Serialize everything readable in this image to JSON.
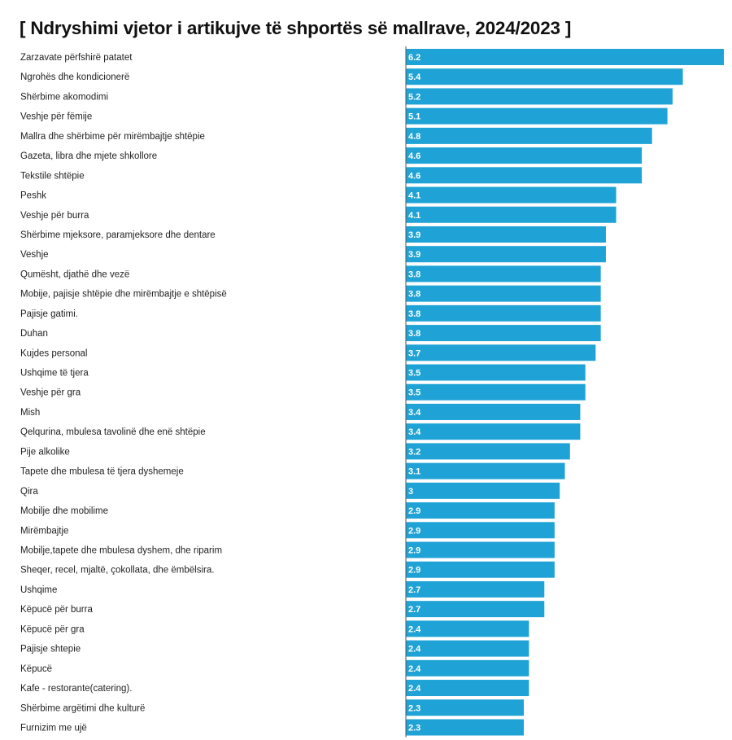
{
  "chart_data": {
    "type": "bar",
    "orientation": "horizontal",
    "title": "[ Ndryshimi vjetor i artikujve të shportës së mallrave, 2024/2023 ]",
    "bar_color": "#1fa3d6",
    "categories": [
      "Zarzavate përfshirë patatet",
      "Ngrohës dhe kondicionerë",
      "Shërbime akomodimi",
      "Veshje për fëmije",
      "Mallra dhe shërbime për mirëmbajtje shtëpie",
      "Gazeta, libra dhe mjete shkollore",
      "Tekstile shtëpie",
      "Peshk",
      "Veshje për burra",
      "Shërbime mjeksore, paramjeksore dhe dentare",
      "Veshje",
      "Qumësht, djathë dhe vezë",
      "Mobije, pajisje shtëpie dhe mirëmbajtje e shtëpisë",
      "Pajisje gatimi.",
      "Duhan",
      "Kujdes personal",
      "Ushqime të tjera",
      "Veshje për gra",
      "Mish",
      "Qelqurina, mbulesa tavolinë dhe enë shtëpie",
      "Pije alkolike",
      "Tapete dhe mbulesa të tjera dyshemeje",
      "Qira",
      "Mobilje dhe mobilime",
      "Mirëmbajtje",
      "Mobilje,tapete dhe mbulesa dyshem, dhe riparim",
      "Sheqer, recel, mjaltë, çokollata, dhe ëmbëlsira.",
      "Ushqime",
      "Këpucë për burra",
      "Këpucë për gra",
      "Pajisje shtepie",
      "Këpucë",
      "Kafe - restorante(catering).",
      "Shërbime argëtimi dhe kulturë",
      "Furnizim me ujë"
    ],
    "values": [
      6.2,
      5.4,
      5.2,
      5.1,
      4.8,
      4.6,
      4.6,
      4.1,
      4.1,
      3.9,
      3.9,
      3.8,
      3.8,
      3.8,
      3.8,
      3.7,
      3.5,
      3.5,
      3.4,
      3.4,
      3.2,
      3.1,
      3,
      2.9,
      2.9,
      2.9,
      2.9,
      2.7,
      2.7,
      2.4,
      2.4,
      2.4,
      2.4,
      2.3,
      2.3
    ],
    "value_labels": [
      "6.2",
      "5.4",
      "5.2",
      "5.1",
      "4.8",
      "4.6",
      "4.6",
      "4.1",
      "4.1",
      "3.9",
      "3.9",
      "3.8",
      "3.8",
      "3.8",
      "3.8",
      "3.7",
      "3.5",
      "3.5",
      "3.4",
      "3.4",
      "3.2",
      "3.1",
      "3",
      "2.9",
      "2.9",
      "2.9",
      "2.9",
      "2.7",
      "2.7",
      "2.4",
      "2.4",
      "2.4",
      "2.4",
      "2.3",
      "2.3"
    ],
    "xlim": [
      0,
      6.2
    ],
    "grid": false,
    "legend": "none"
  }
}
